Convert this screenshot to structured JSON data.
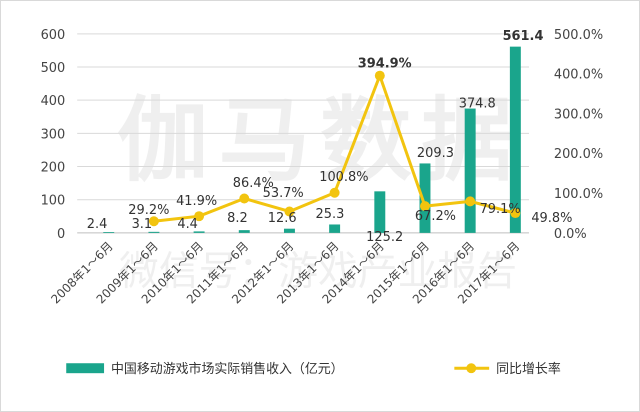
{
  "watermark": {
    "main": "伽马数据",
    "sub": "微信号：游戏产业报告"
  },
  "colors": {
    "bar": "#1aa58c",
    "line": "#f2c40f",
    "grid": "#d9d9d9",
    "axis": "#bfbfbf"
  },
  "chart_data": {
    "type": "bar",
    "categories": [
      "2008年1～6月",
      "2009年1～6月",
      "2010年1～6月",
      "2011年1～6月",
      "2012年1～6月",
      "2013年1～6月",
      "2014年1～6月",
      "2015年1～6月",
      "2016年1～6月",
      "2017年1～6月"
    ],
    "series": [
      {
        "name": "中国移动游戏市场实际销售收入（亿元）",
        "type": "bar",
        "axis": "left",
        "values": [
          2.4,
          3.1,
          4.4,
          8.2,
          12.6,
          25.3,
          125.2,
          209.3,
          374.8,
          561.4
        ],
        "labels": [
          "2.4",
          "3.1",
          "4.4",
          "8.2",
          "12.6",
          "25.3",
          "125.2",
          "209.3",
          "374.8",
          "561.4"
        ]
      },
      {
        "name": "同比增长率",
        "type": "line",
        "axis": "right",
        "values": [
          null,
          29.2,
          41.9,
          86.4,
          53.7,
          100.8,
          394.9,
          67.2,
          79.1,
          49.8
        ],
        "labels": [
          "",
          "29.2%",
          "41.9%",
          "86.4%",
          "53.7%",
          "100.8%",
          "394.9%",
          "67.2%",
          "79.1%",
          "49.8%"
        ]
      }
    ],
    "y_left": {
      "min": 0,
      "max": 600,
      "ticks": [
        "0",
        "100",
        "200",
        "300",
        "400",
        "500",
        "600"
      ]
    },
    "y_right": {
      "min": 0,
      "max": 500,
      "ticks": [
        "0.0%",
        "100.0%",
        "200.0%",
        "300.0%",
        "400.0%",
        "500.0%"
      ]
    },
    "grid": true,
    "legend_position": "bottom"
  }
}
